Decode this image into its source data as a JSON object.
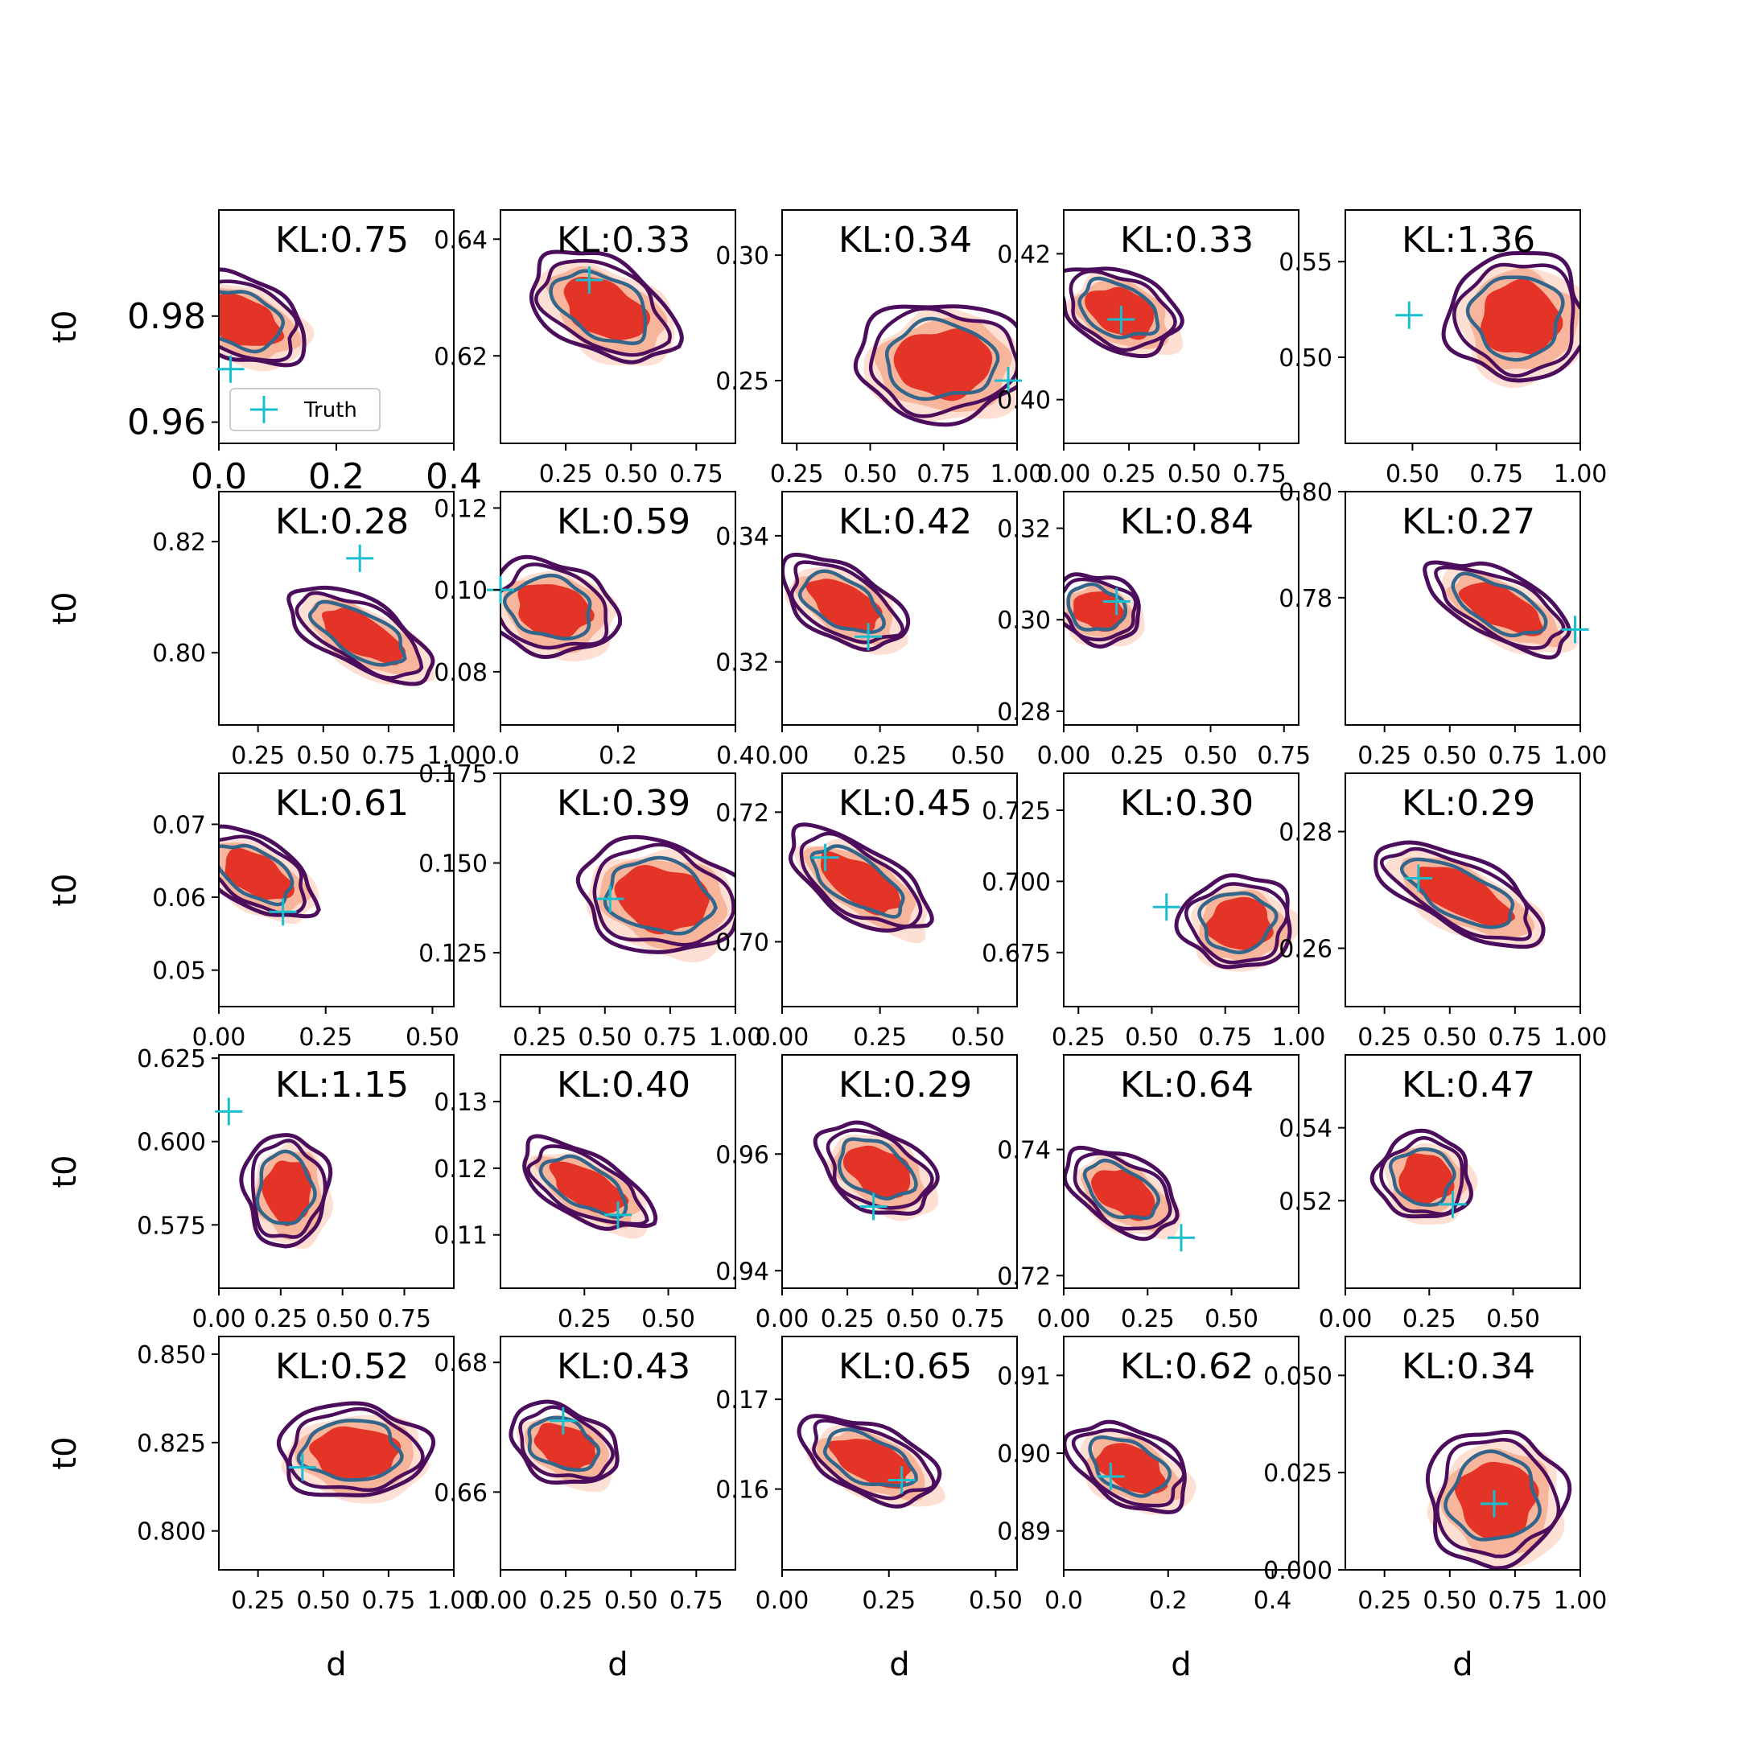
{
  "chart_data": {
    "type": "scatter",
    "layout": "5x5 grid of 2D posterior density contour panels",
    "xlabel": "d",
    "ylabel": "t0",
    "legend": {
      "label": "Truth",
      "placement": "lower-left of first panel"
    },
    "colors": {
      "fill_levels": [
        "#fde0d3",
        "#f7b59b",
        "#e43327"
      ],
      "outer_contour": "#4b0d5c",
      "inner_contour": "#33668a",
      "truth_marker": "#17becf"
    },
    "panels": [
      {
        "kl": "KL:0.75",
        "xlim": [
          0,
          0.4
        ],
        "xticks": [
          0,
          0.2,
          0.4
        ],
        "xticklabels": [
          "0.0",
          "0.2",
          "0.4"
        ],
        "ylim": [
          0.956,
          1.0
        ],
        "yticks": [
          0.96,
          0.98
        ],
        "yticklabels": [
          "0.96",
          "0.98"
        ],
        "center": [
          0.04,
          0.979
        ],
        "spread": [
          0.07,
          0.006
        ],
        "corr": -0.55,
        "truth": [
          0.02,
          0.97
        ],
        "legend": true
      },
      {
        "kl": "KL:0.33",
        "xlim": [
          0,
          0.9
        ],
        "xticks": [
          0.25,
          0.5,
          0.75
        ],
        "xticklabels": [
          "0.25",
          "0.50",
          "0.75"
        ],
        "ylim": [
          0.605,
          0.645
        ],
        "yticks": [
          0.62,
          0.64
        ],
        "yticklabels": [
          "0.62",
          "0.64"
        ],
        "center": [
          0.4,
          0.628
        ],
        "spread": [
          0.17,
          0.007
        ],
        "corr": -0.72,
        "truth": [
          0.34,
          0.633
        ]
      },
      {
        "kl": "KL:0.34",
        "xlim": [
          0.2,
          1.0
        ],
        "xticks": [
          0.25,
          0.5,
          0.75,
          1.0
        ],
        "xticklabels": [
          "0.25",
          "0.50",
          "0.75",
          "1.00"
        ],
        "ylim": [
          0.225,
          0.318
        ],
        "yticks": [
          0.25,
          0.3
        ],
        "yticklabels": [
          "0.25",
          "0.30"
        ],
        "center": [
          0.75,
          0.257
        ],
        "spread": [
          0.2,
          0.015
        ],
        "corr": 0.05,
        "truth": [
          0.97,
          0.25
        ]
      },
      {
        "kl": "KL:0.33",
        "xlim": [
          0,
          0.9
        ],
        "xticks": [
          0,
          0.25,
          0.5,
          0.75
        ],
        "xticklabels": [
          "0.00",
          "0.25",
          "0.50",
          "0.75"
        ],
        "ylim": [
          0.394,
          0.426
        ],
        "yticks": [
          0.4,
          0.42
        ],
        "yticklabels": [
          "0.40",
          "0.42"
        ],
        "center": [
          0.22,
          0.412
        ],
        "spread": [
          0.12,
          0.005
        ],
        "corr": -0.6,
        "truth": [
          0.22,
          0.411
        ]
      },
      {
        "kl": "KL:1.36",
        "xlim": [
          0.3,
          1.0
        ],
        "xticks": [
          0.5,
          0.75,
          1.0
        ],
        "xticklabels": [
          "0.50",
          "0.75",
          "1.00"
        ],
        "ylim": [
          0.455,
          0.577
        ],
        "yticks": [
          0.5,
          0.55
        ],
        "yticklabels": [
          "0.50",
          "0.55"
        ],
        "center": [
          0.82,
          0.52
        ],
        "spread": [
          0.14,
          0.022
        ],
        "corr": -0.1,
        "truth": [
          0.49,
          0.522
        ]
      },
      {
        "kl": "KL:0.28",
        "xlim": [
          0.1,
          1.0
        ],
        "xticks": [
          0.25,
          0.5,
          0.75,
          1.0
        ],
        "xticklabels": [
          "0.25",
          "0.50",
          "0.75",
          "1.00"
        ],
        "ylim": [
          0.787,
          0.829
        ],
        "yticks": [
          0.8,
          0.82
        ],
        "yticklabels": [
          "0.80",
          "0.82"
        ],
        "center": [
          0.65,
          0.803
        ],
        "spread": [
          0.17,
          0.005
        ],
        "corr": -0.75,
        "truth": [
          0.64,
          0.817
        ]
      },
      {
        "kl": "KL:0.59",
        "xlim": [
          0,
          0.4
        ],
        "xticks": [
          0,
          0.2,
          0.4
        ],
        "xticklabels": [
          "0.0",
          "0.2",
          "0.4"
        ],
        "ylim": [
          0.067,
          0.124
        ],
        "yticks": [
          0.08,
          0.1,
          0.12
        ],
        "yticklabels": [
          "0.08",
          "0.10",
          "0.12"
        ],
        "center": [
          0.09,
          0.095
        ],
        "spread": [
          0.07,
          0.008
        ],
        "corr": -0.35,
        "truth": [
          0.0,
          0.1
        ]
      },
      {
        "kl": "KL:0.42",
        "xlim": [
          0,
          0.6
        ],
        "xticks": [
          0,
          0.25,
          0.5
        ],
        "xticklabels": [
          "0.00",
          "0.25",
          "0.50"
        ],
        "ylim": [
          0.31,
          0.347
        ],
        "yticks": [
          0.32,
          0.34
        ],
        "yticklabels": [
          "0.32",
          "0.34"
        ],
        "center": [
          0.16,
          0.329
        ],
        "spread": [
          0.08,
          0.006
        ],
        "corr": -0.78,
        "truth": [
          0.22,
          0.324
        ]
      },
      {
        "kl": "KL:0.84",
        "xlim": [
          0,
          0.8
        ],
        "xticks": [
          0,
          0.25,
          0.5,
          0.75
        ],
        "xticklabels": [
          "0.00",
          "0.25",
          "0.50",
          "0.75"
        ],
        "ylim": [
          0.277,
          0.328
        ],
        "yticks": [
          0.28,
          0.3,
          0.32
        ],
        "yticklabels": [
          "0.28",
          "0.30",
          "0.32"
        ],
        "center": [
          0.12,
          0.302
        ],
        "spread": [
          0.08,
          0.006
        ],
        "corr": -0.45,
        "truth": [
          0.18,
          0.304
        ]
      },
      {
        "kl": "KL:0.27",
        "xlim": [
          0.1,
          1.0
        ],
        "xticks": [
          0.25,
          0.5,
          0.75,
          1.0
        ],
        "xticklabels": [
          "0.25",
          "0.50",
          "0.75",
          "1.00"
        ],
        "ylim": [
          0.756,
          0.8
        ],
        "yticks": [
          0.78,
          0.8
        ],
        "yticklabels": [
          "0.78",
          "0.80"
        ],
        "center": [
          0.7,
          0.778
        ],
        "spread": [
          0.17,
          0.005
        ],
        "corr": -0.7,
        "truth": [
          0.98,
          0.774
        ]
      },
      {
        "kl": "KL:0.61",
        "xlim": [
          0,
          0.55
        ],
        "xticks": [
          0,
          0.25,
          0.5
        ],
        "xticklabels": [
          "0.00",
          "0.25",
          "0.50"
        ],
        "ylim": [
          0.045,
          0.077
        ],
        "yticks": [
          0.05,
          0.06,
          0.07
        ],
        "yticklabels": [
          "0.05",
          "0.06",
          "0.07"
        ],
        "center": [
          0.09,
          0.063
        ],
        "spread": [
          0.07,
          0.005
        ],
        "corr": -0.78,
        "truth": [
          0.15,
          0.058
        ]
      },
      {
        "kl": "KL:0.39",
        "xlim": [
          0.1,
          1.0
        ],
        "xticks": [
          0.25,
          0.5,
          0.75,
          1.0
        ],
        "xticklabels": [
          "0.25",
          "0.50",
          "0.75",
          "1.00"
        ],
        "ylim": [
          0.11,
          0.175
        ],
        "yticks": [
          0.125,
          0.15,
          0.175
        ],
        "yticklabels": [
          "0.125",
          "0.150",
          "0.175"
        ],
        "center": [
          0.72,
          0.14
        ],
        "spread": [
          0.2,
          0.011
        ],
        "corr": -0.3,
        "truth": [
          0.52,
          0.14
        ]
      },
      {
        "kl": "KL:0.45",
        "xlim": [
          0,
          0.6
        ],
        "xticks": [
          0,
          0.25,
          0.5
        ],
        "xticklabels": [
          "0.00",
          "0.25",
          "0.50"
        ],
        "ylim": [
          0.69,
          0.726
        ],
        "yticks": [
          0.7,
          0.72
        ],
        "yticklabels": [
          "0.70",
          "0.72"
        ],
        "center": [
          0.2,
          0.709
        ],
        "spread": [
          0.11,
          0.005
        ],
        "corr": -0.85,
        "truth": [
          0.11,
          0.713
        ]
      },
      {
        "kl": "KL:0.30",
        "xlim": [
          0.2,
          1.0
        ],
        "xticks": [
          0.25,
          0.5,
          0.75,
          1.0
        ],
        "xticklabels": [
          "0.25",
          "0.50",
          "0.75",
          "1.00"
        ],
        "ylim": [
          0.656,
          0.738
        ],
        "yticks": [
          0.675,
          0.7,
          0.725
        ],
        "yticklabels": [
          "0.675",
          "0.700",
          "0.725"
        ],
        "center": [
          0.8,
          0.685
        ],
        "spread": [
          0.13,
          0.01
        ],
        "corr": -0.1,
        "truth": [
          0.55,
          0.691
        ]
      },
      {
        "kl": "KL:0.29",
        "xlim": [
          0.1,
          1.0
        ],
        "xticks": [
          0.25,
          0.5,
          0.75,
          1.0
        ],
        "xticklabels": [
          "0.25",
          "0.50",
          "0.75",
          "1.00"
        ],
        "ylim": [
          0.25,
          0.29
        ],
        "yticks": [
          0.26,
          0.28
        ],
        "yticklabels": [
          "0.26",
          "0.28"
        ],
        "center": [
          0.55,
          0.269
        ],
        "spread": [
          0.2,
          0.005
        ],
        "corr": -0.7,
        "truth": [
          0.38,
          0.272
        ]
      },
      {
        "kl": "KL:1.15",
        "xlim": [
          0,
          0.95
        ],
        "xticks": [
          0,
          0.25,
          0.5,
          0.75
        ],
        "xticklabels": [
          "0.00",
          "0.25",
          "0.50",
          "0.75"
        ],
        "ylim": [
          0.556,
          0.626
        ],
        "yticks": [
          0.575,
          0.6,
          0.625
        ],
        "yticklabels": [
          "0.575",
          "0.600",
          "0.625"
        ],
        "center": [
          0.28,
          0.585
        ],
        "spread": [
          0.11,
          0.011
        ],
        "corr": -0.2,
        "truth": [
          0.04,
          0.609
        ]
      },
      {
        "kl": "KL:0.40",
        "xlim": [
          0,
          0.7
        ],
        "xticks": [
          0.25,
          0.5
        ],
        "xticklabels": [
          "0.25",
          "0.50"
        ],
        "ylim": [
          0.102,
          0.137
        ],
        "yticks": [
          0.11,
          0.12,
          0.13
        ],
        "yticklabels": [
          "0.11",
          "0.12",
          "0.13"
        ],
        "center": [
          0.26,
          0.117
        ],
        "spread": [
          0.12,
          0.004
        ],
        "corr": -0.75,
        "truth": [
          0.35,
          0.113
        ]
      },
      {
        "kl": "KL:0.29",
        "xlim": [
          0,
          0.9
        ],
        "xticks": [
          0,
          0.25,
          0.5,
          0.75
        ],
        "xticklabels": [
          "0.00",
          "0.25",
          "0.50",
          "0.75"
        ],
        "ylim": [
          0.937,
          0.977
        ],
        "yticks": [
          0.94,
          0.96
        ],
        "yticklabels": [
          "0.94",
          "0.96"
        ],
        "center": [
          0.37,
          0.957
        ],
        "spread": [
          0.13,
          0.006
        ],
        "corr": -0.72,
        "truth": [
          0.35,
          0.951
        ]
      },
      {
        "kl": "KL:0.64",
        "xlim": [
          0,
          0.7
        ],
        "xticks": [
          0,
          0.25,
          0.5
        ],
        "xticklabels": [
          "0.00",
          "0.25",
          "0.50"
        ],
        "ylim": [
          0.718,
          0.755
        ],
        "yticks": [
          0.72,
          0.74
        ],
        "yticklabels": [
          "0.72",
          "0.74"
        ],
        "center": [
          0.18,
          0.733
        ],
        "spread": [
          0.1,
          0.005
        ],
        "corr": -0.8,
        "truth": [
          0.35,
          0.726
        ]
      },
      {
        "kl": "KL:0.47",
        "xlim": [
          0,
          0.7
        ],
        "xticks": [
          0,
          0.25,
          0.5
        ],
        "xticklabels": [
          "0.00",
          "0.25",
          "0.50"
        ],
        "ylim": [
          0.496,
          0.56
        ],
        "yticks": [
          0.52,
          0.54
        ],
        "yticklabels": [
          "0.52",
          "0.54"
        ],
        "center": [
          0.24,
          0.526
        ],
        "spread": [
          0.09,
          0.008
        ],
        "corr": -0.3,
        "truth": [
          0.32,
          0.519
        ]
      },
      {
        "kl": "KL:0.52",
        "xlim": [
          0.1,
          1.0
        ],
        "xticks": [
          0.25,
          0.5,
          0.75,
          1.0
        ],
        "xticklabels": [
          "0.25",
          "0.50",
          "0.75",
          "1.00"
        ],
        "ylim": [
          0.789,
          0.855
        ],
        "yticks": [
          0.8,
          0.825,
          0.85
        ],
        "yticklabels": [
          "0.800",
          "0.825",
          "0.850"
        ],
        "center": [
          0.62,
          0.822
        ],
        "spread": [
          0.2,
          0.008
        ],
        "corr": -0.05,
        "truth": [
          0.42,
          0.818
        ]
      },
      {
        "kl": "KL:0.43",
        "xlim": [
          0,
          0.9
        ],
        "xticks": [
          0,
          0.25,
          0.5,
          0.75
        ],
        "xticklabels": [
          "0.00",
          "0.25",
          "0.50",
          "0.75"
        ],
        "ylim": [
          0.648,
          0.684
        ],
        "yticks": [
          0.66,
          0.68
        ],
        "yticklabels": [
          "0.66",
          "0.68"
        ],
        "center": [
          0.25,
          0.667
        ],
        "spread": [
          0.11,
          0.005
        ],
        "corr": -0.6,
        "truth": [
          0.24,
          0.671
        ]
      },
      {
        "kl": "KL:0.65",
        "xlim": [
          0,
          0.55
        ],
        "xticks": [
          0,
          0.25,
          0.5
        ],
        "xticklabels": [
          "0.00",
          "0.25",
          "0.50"
        ],
        "ylim": [
          0.151,
          0.177
        ],
        "yticks": [
          0.16,
          0.17
        ],
        "yticklabels": [
          "0.16",
          "0.17"
        ],
        "center": [
          0.21,
          0.163
        ],
        "spread": [
          0.1,
          0.003
        ],
        "corr": -0.6,
        "truth": [
          0.28,
          0.161
        ]
      },
      {
        "kl": "KL:0.62",
        "xlim": [
          0,
          0.45
        ],
        "xticks": [
          0,
          0.2,
          0.4
        ],
        "xticklabels": [
          "0.0",
          "0.2",
          "0.4"
        ],
        "ylim": [
          0.885,
          0.915
        ],
        "yticks": [
          0.89,
          0.9,
          0.91
        ],
        "yticklabels": [
          "0.89",
          "0.90",
          "0.91"
        ],
        "center": [
          0.13,
          0.898
        ],
        "spread": [
          0.07,
          0.004
        ],
        "corr": -0.7,
        "truth": [
          0.09,
          0.897
        ]
      },
      {
        "kl": "KL:0.34",
        "xlim": [
          0.1,
          1.0
        ],
        "xticks": [
          0.25,
          0.5,
          0.75,
          1.0
        ],
        "xticklabels": [
          "0.25",
          "0.50",
          "0.75",
          "1.00"
        ],
        "ylim": [
          0.0,
          0.06
        ],
        "yticks": [
          0.0,
          0.025,
          0.05
        ],
        "yticklabels": [
          "0.000",
          "0.025",
          "0.050"
        ],
        "center": [
          0.68,
          0.018
        ],
        "spread": [
          0.17,
          0.012
        ],
        "corr": -0.05,
        "truth": [
          0.67,
          0.017
        ]
      }
    ]
  }
}
